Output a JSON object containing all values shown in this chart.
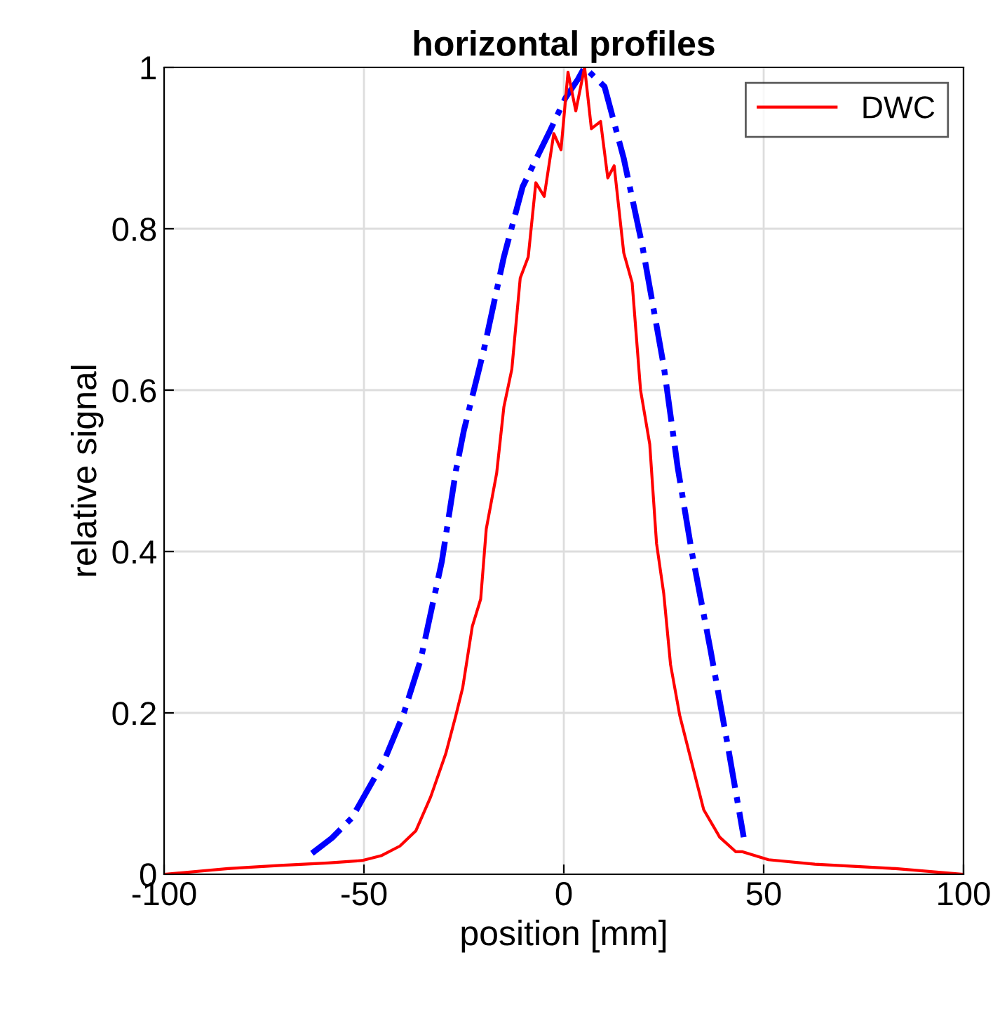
{
  "chart_data": {
    "type": "line",
    "title": "horizontal profiles",
    "xlabel": "position [mm]",
    "ylabel": "relative signal",
    "xlim": [
      -100,
      100
    ],
    "xticks": [
      -100,
      -50,
      0,
      50,
      100
    ],
    "ylim": [
      0,
      1
    ],
    "yticks": [
      0,
      0.2,
      0.4,
      0.6,
      0.8,
      1
    ],
    "grid": true,
    "legend": "top right",
    "series": [
      {
        "color": "#0000ff",
        "line_style": "dashdot",
        "x": [
          -63,
          -58,
          -53,
          -50.5,
          -45,
          -40,
          -35.8,
          -30.5,
          -27,
          -25,
          -20,
          -15,
          -10.3,
          -3.6,
          0.4,
          3.5,
          5.2,
          10.2,
          15,
          19.6,
          25,
          28.5,
          32,
          36.7,
          41,
          45
        ],
        "values": [
          0.026,
          0.045,
          0.07,
          0.092,
          0.14,
          0.2,
          0.266,
          0.388,
          0.5,
          0.55,
          0.65,
          0.765,
          0.852,
          0.92,
          0.962,
          0.985,
          1.0,
          0.976,
          0.887,
          0.78,
          0.63,
          0.504,
          0.4,
          0.278,
          0.16,
          0.046
        ]
      },
      {
        "name": "DWC",
        "color": "#ff0000",
        "line_style": "solid",
        "x": [
          -100,
          -84,
          -71,
          -59,
          -50.5,
          -45.7,
          -41,
          -37,
          -33.3,
          -29.5,
          -27,
          -25.3,
          -22.9,
          -20.8,
          -19.4,
          -16.8,
          -15,
          -13,
          -10.9,
          -8.9,
          -7,
          -4.9,
          -2.5,
          -0.7,
          1.05,
          3,
          5.2,
          6.9,
          9.2,
          11,
          12.6,
          15,
          17.1,
          19.2,
          21.5,
          23.2,
          25,
          26.7,
          29,
          31.5,
          35,
          39,
          43,
          44.6,
          51.2,
          62.8,
          83,
          100
        ],
        "values": [
          0.0,
          0.007,
          0.011,
          0.014,
          0.017,
          0.023,
          0.035,
          0.054,
          0.096,
          0.15,
          0.197,
          0.231,
          0.307,
          0.341,
          0.428,
          0.497,
          0.579,
          0.626,
          0.739,
          0.765,
          0.857,
          0.84,
          0.918,
          0.898,
          0.994,
          0.946,
          1.0,
          0.924,
          0.933,
          0.863,
          0.878,
          0.77,
          0.733,
          0.6,
          0.533,
          0.41,
          0.348,
          0.26,
          0.197,
          0.148,
          0.08,
          0.046,
          0.028,
          0.028,
          0.018,
          0.0125,
          0.007,
          0.0
        ]
      }
    ]
  }
}
